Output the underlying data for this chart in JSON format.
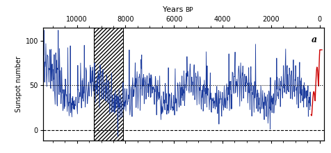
{
  "title_top": "Years ",
  "title_bp": "BP",
  "ylabel": "Sunspot number",
  "label_a": "a",
  "xlim": [
    11400,
    -200
  ],
  "ylim": [
    -12,
    115
  ],
  "yticks": [
    0,
    50,
    100
  ],
  "xticks_top": [
    10000,
    8000,
    6000,
    4000,
    2000,
    0
  ],
  "hatch_xmin": 9300,
  "hatch_xmax": 8100,
  "dotted_y": 50,
  "dashed_y": 0,
  "blue_color": "#1a3a9c",
  "red_color": "#cc0000",
  "background_color": "#ffffff",
  "red_threshold": 350,
  "n_points": 900,
  "seed": 7
}
